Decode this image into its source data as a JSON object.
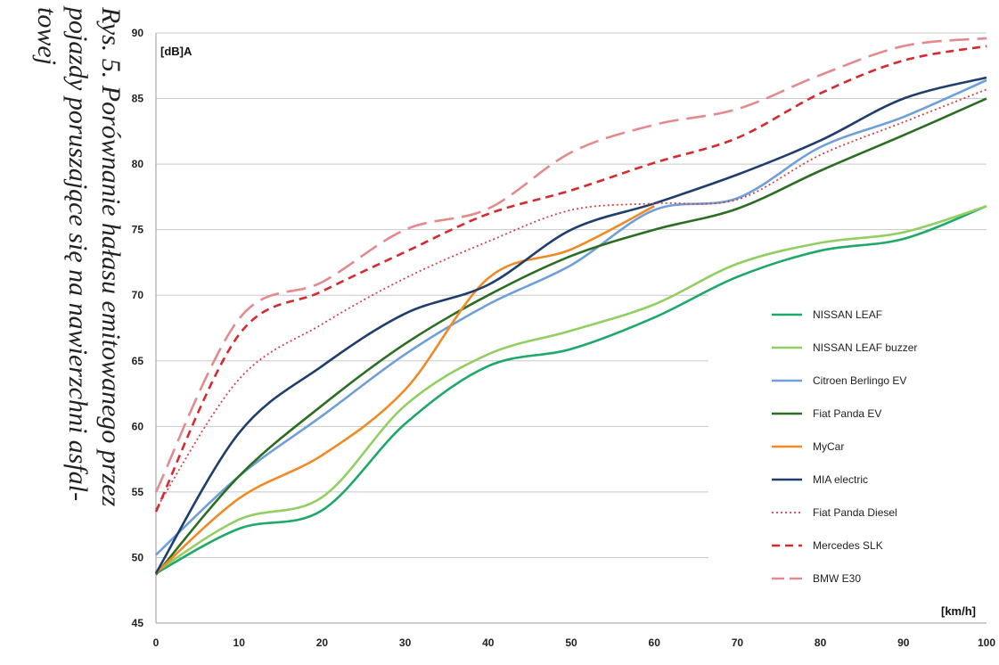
{
  "caption": {
    "lines": [
      "Rys. 5. Porównanie hałasu emitowanego przez",
      "pojazdy poruszające się na nawierzchni asfal-",
      "towej"
    ]
  },
  "chart_data": {
    "type": "line",
    "title": "",
    "xlabel": "[km/h]",
    "ylabel": "[dB]A",
    "xlim": [
      0,
      100
    ],
    "ylim": [
      45,
      90
    ],
    "x_ticks": [
      0,
      10,
      20,
      30,
      40,
      50,
      60,
      70,
      80,
      90,
      100
    ],
    "y_ticks": [
      45,
      50,
      55,
      60,
      65,
      70,
      75,
      80,
      85,
      90
    ],
    "grid": "horizontal",
    "legend_position": "right",
    "x": [
      0,
      10,
      20,
      30,
      40,
      50,
      60,
      70,
      80,
      90,
      100
    ],
    "series": [
      {
        "name": "NISSAN LEAF",
        "color": "#1ea86a",
        "dash": "solid",
        "values": [
          48.8,
          52.2,
          53.6,
          60.2,
          64.6,
          65.9,
          68.3,
          71.4,
          73.4,
          74.3,
          76.8
        ]
      },
      {
        "name": "NISSAN LEAF buzzer",
        "color": "#92cf62",
        "dash": "solid",
        "values": [
          48.9,
          52.9,
          54.6,
          61.6,
          65.5,
          67.3,
          69.3,
          72.4,
          74.0,
          74.8,
          76.8
        ]
      },
      {
        "name": "Citroen Berlingo EV",
        "color": "#6f9fd8",
        "dash": "solid",
        "values": [
          50.2,
          56.2,
          60.8,
          65.5,
          69.3,
          72.3,
          76.5,
          77.4,
          81.3,
          83.6,
          86.4
        ]
      },
      {
        "name": "Fiat Panda EV",
        "color": "#2b6e22",
        "dash": "solid",
        "values": [
          48.7,
          56.2,
          61.6,
          66.3,
          70.0,
          73.0,
          75.0,
          76.6,
          79.5,
          82.2,
          85.0
        ]
      },
      {
        "name": "MyCar",
        "color": "#f08a24",
        "dash": "solid",
        "values": [
          48.8,
          54.5,
          57.8,
          62.8,
          71.3,
          73.5,
          76.8,
          null,
          null,
          null,
          null
        ]
      },
      {
        "name": "MIA electric",
        "color": "#1f3e6e",
        "dash": "solid",
        "values": [
          48.8,
          59.5,
          64.6,
          68.6,
          70.8,
          75.0,
          77.0,
          79.2,
          81.8,
          85.0,
          86.6
        ]
      },
      {
        "name": "Fiat Panda Diesel",
        "color": "#d0444a",
        "dash": "dotted",
        "values": [
          53.7,
          63.6,
          67.8,
          71.3,
          74.1,
          76.5,
          77.0,
          77.3,
          80.7,
          83.2,
          85.7
        ]
      },
      {
        "name": "Mercedes SLK",
        "color": "#d42a30",
        "dash": "dashed",
        "values": [
          53.5,
          67.0,
          70.3,
          73.3,
          76.2,
          78.0,
          80.1,
          82.0,
          85.4,
          87.9,
          89.0
        ]
      },
      {
        "name": "BMW E30",
        "color": "#e48a8e",
        "dash": "longdash",
        "values": [
          55.0,
          68.2,
          71.0,
          75.0,
          76.6,
          80.9,
          83.0,
          84.2,
          86.8,
          89.0,
          89.6
        ]
      }
    ]
  }
}
